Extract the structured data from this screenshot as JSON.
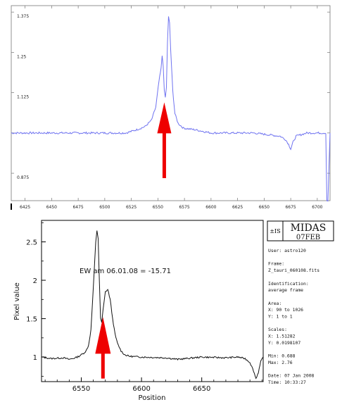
{
  "chart_data": [
    {
      "type": "line",
      "title": "",
      "xlabel": "",
      "ylabel": "",
      "line_color": "#6f73f0",
      "xlim": [
        6412,
        6712
      ],
      "ylim": [
        0.79,
        1.395
      ],
      "x_ticks": [
        6425,
        6450,
        6475,
        6500,
        6525,
        6550,
        6575,
        6600,
        6625,
        6650,
        6675,
        6700
      ],
      "y_ticks": [
        0.875,
        1.0,
        1.125,
        1.25,
        1.375
      ],
      "y_tick_labels": [
        "0.875",
        "",
        "1.125",
        "1.25",
        "1.375"
      ],
      "grid": false,
      "series": [
        {
          "x": [
            6412,
            6500,
            6520,
            6530,
            6538,
            6544,
            6548,
            6551,
            6553,
            6554,
            6555,
            6556,
            6557,
            6558,
            6559,
            6560,
            6561,
            6562,
            6564,
            6566,
            6569,
            6574,
            6585,
            6600,
            6640,
            6665,
            6670,
            6673,
            6675,
            6677,
            6680,
            6690,
            6705,
            6708,
            6709,
            6710,
            6712
          ],
          "y": [
            1.0,
            1.0,
            1.0,
            1.01,
            1.02,
            1.04,
            1.08,
            1.16,
            1.2,
            1.24,
            1.21,
            1.13,
            1.11,
            1.14,
            1.28,
            1.36,
            1.34,
            1.26,
            1.13,
            1.06,
            1.03,
            1.015,
            1.01,
            1.0,
            1.0,
            0.99,
            0.98,
            0.965,
            0.95,
            0.97,
            0.99,
            1.0,
            1.0,
            1.0,
            0.79,
            0.79,
            1.0
          ]
        }
      ],
      "annotation": {
        "type": "arrow",
        "color": "#ee0000",
        "x": 6556,
        "y_from": 0.86,
        "y_to": 1.095
      }
    },
    {
      "type": "line",
      "title": "",
      "xlabel": "Position",
      "ylabel": "Pixel value",
      "line_color": "#111111",
      "xlim": [
        6517,
        6701
      ],
      "ylim": [
        0.68,
        2.78
      ],
      "x_ticks": [
        6550,
        6600,
        6650
      ],
      "y_ticks": [
        1,
        1.5,
        2,
        2.5
      ],
      "grid": false,
      "annotation_text": "EW am 06.01.08 = -15.71",
      "series": [
        {
          "x": [
            6517,
            6525,
            6535,
            6540,
            6545,
            6548,
            6550,
            6552,
            6554,
            6556,
            6558,
            6560,
            6562,
            6563,
            6564,
            6565,
            6566,
            6567,
            6568,
            6570,
            6572,
            6574,
            6576,
            6578,
            6580,
            6583,
            6586,
            6590,
            6600,
            6620,
            6630,
            6650,
            6670,
            6680,
            6686,
            6690,
            6693,
            6695,
            6697,
            6699,
            6701
          ],
          "y": [
            1.0,
            0.98,
            0.99,
            0.97,
            0.99,
            1.01,
            1.03,
            1.05,
            1.08,
            1.15,
            1.35,
            1.9,
            2.5,
            2.65,
            2.55,
            2.0,
            1.5,
            1.45,
            1.6,
            1.85,
            1.88,
            1.75,
            1.5,
            1.3,
            1.18,
            1.08,
            1.03,
            1.01,
            1.0,
            0.99,
            0.97,
            1.0,
            0.99,
            1.0,
            0.98,
            0.93,
            0.82,
            0.72,
            0.8,
            0.94,
            1.0
          ]
        }
      ],
      "annotation": {
        "type": "arrow",
        "color": "#ee0000",
        "x": 6568,
        "y_from": 0.72,
        "y_to": 1.52
      }
    }
  ],
  "midas_panel": {
    "logo_symbol": "±IS",
    "logo_title": "MIDAS",
    "logo_subtitle": "07FEB",
    "lines": [
      "User: astro120",
      "",
      "Frame:",
      "Z_tauri_060108.fits",
      "",
      "Identification:",
      "average frame",
      "",
      "Area:",
      "X: 90 to 1026",
      "Y: 1 to 1",
      "",
      "Scales:",
      "X: 1.51282",
      "Y: 0.0198107",
      "",
      "Min: 0.688",
      "Max: 2.76",
      "",
      "Date: 07 Jan 2008",
      "Time: 10:33:27"
    ]
  }
}
